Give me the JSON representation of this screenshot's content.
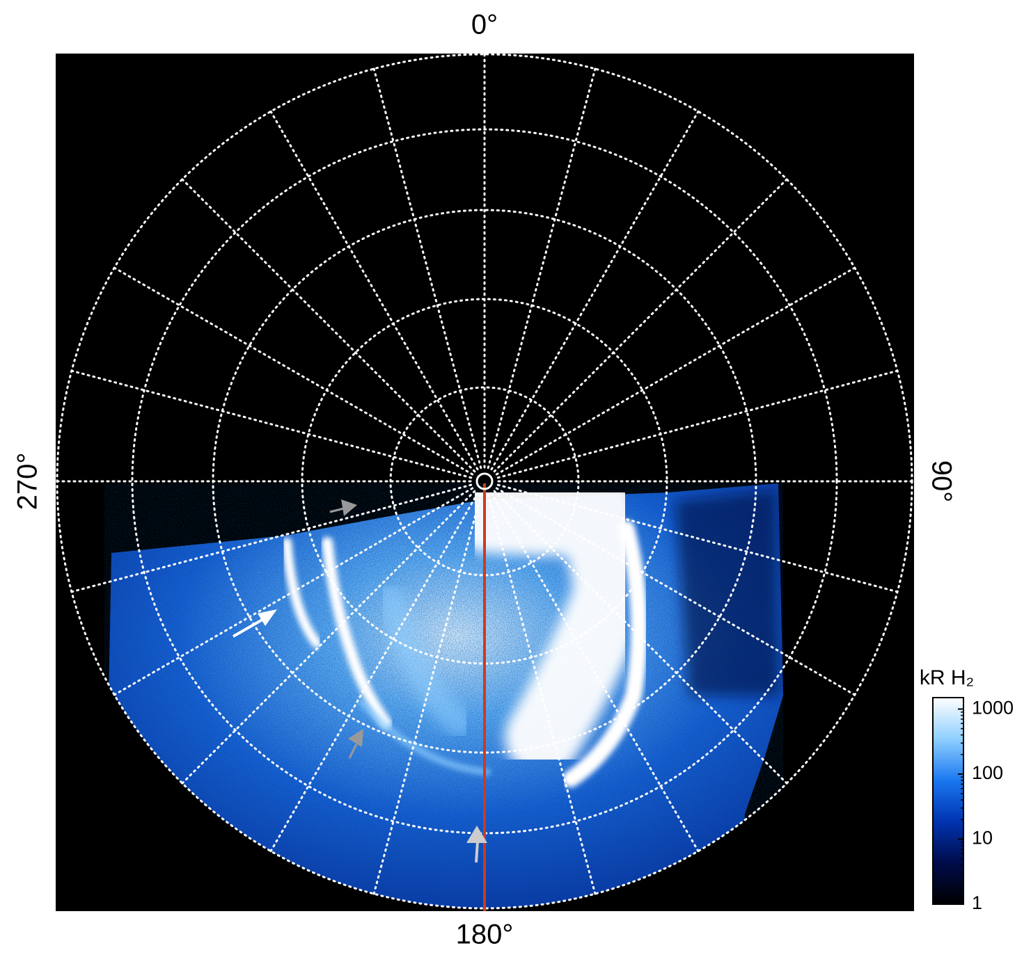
{
  "chart_data": {
    "type": "polar_image",
    "angle_ticks": [
      {
        "value": 0,
        "label": "0°"
      },
      {
        "value": 90,
        "label": "90°"
      },
      {
        "value": 180,
        "label": "180°"
      },
      {
        "value": 270,
        "label": "270°"
      }
    ],
    "colorbar": {
      "title": "kR H₂",
      "lim": [
        1,
        1500
      ],
      "ticks": [
        1,
        10,
        100,
        1000
      ],
      "log": true,
      "colormap": [
        "#000000",
        "#000c4a",
        "#0033b0",
        "#1a78f0",
        "#8fcfff",
        "#ffffff"
      ]
    },
    "grid": true
  }
}
